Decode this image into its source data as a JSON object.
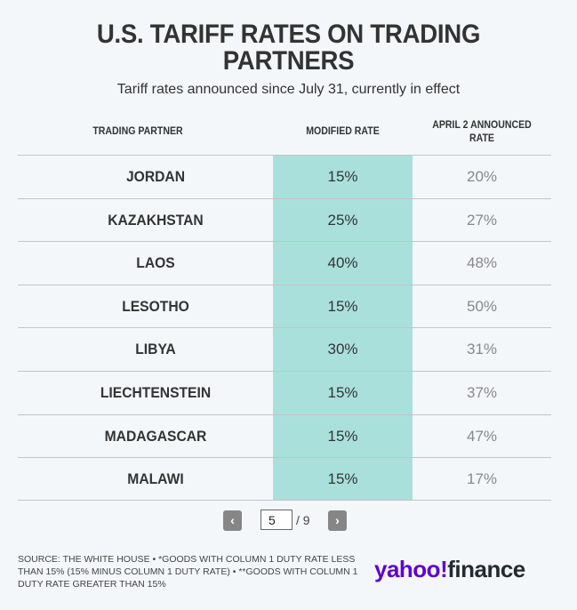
{
  "title": "U.S. TARIFF RATES ON TRADING PARTNERS",
  "title_line1": "U.S. TARIFF RATES ON TRADING",
  "title_line2": "PARTNERS",
  "subtitle": "Tariff rates announced since July 31, currently in effect",
  "columns": [
    "TRADING PARTNER",
    "MODIFIED RATE",
    "APRIL 2 ANNOUNCED",
    "RATE"
  ],
  "highlight_color": "#aae0dc",
  "rows": [
    {
      "partner": "JORDAN",
      "modified": "15%",
      "april2": "20%"
    },
    {
      "partner": "KAZAKHSTAN",
      "modified": "25%",
      "april2": "27%"
    },
    {
      "partner": "LAOS",
      "modified": "40%",
      "april2": "48%"
    },
    {
      "partner": "LESOTHO",
      "modified": "15%",
      "april2": "50%"
    },
    {
      "partner": "LIBYA",
      "modified": "30%",
      "april2": "31%"
    },
    {
      "partner": "LIECHTENSTEIN",
      "modified": "15%",
      "april2": "37%"
    },
    {
      "partner": "MADAGASCAR",
      "modified": "15%",
      "april2": "47%"
    },
    {
      "partner": "MALAWI",
      "modified": "15%",
      "april2": "17%"
    }
  ],
  "pager": {
    "prev": "‹",
    "next": "›",
    "current": "5",
    "total": "/ 9"
  },
  "source": "SOURCE: THE WHITE HOUSE • *GOODS WITH COLUMN 1 DUTY RATE LESS THAN 15% (15% MINUS COLUMN 1 DUTY RATE) • **GOODS WITH COLUMN 1 DUTY RATE GREATER THAN 15%",
  "logo": {
    "yahoo": "yahoo!",
    "finance": "finance"
  }
}
